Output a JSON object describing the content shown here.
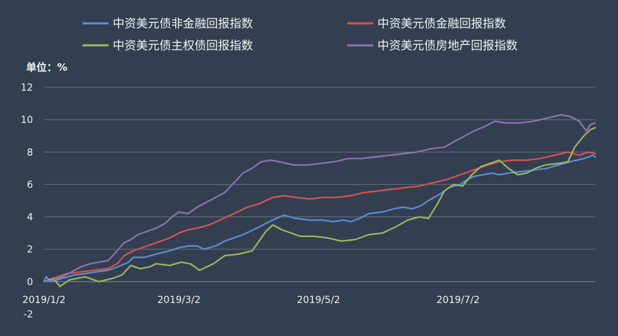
{
  "chart_data": {
    "type": "line",
    "title": "",
    "unit_label": "单位：%",
    "background": "#333f50",
    "grid_color": "#6b7380",
    "grid": true,
    "legend_position": "top",
    "ylim": [
      -2,
      12
    ],
    "y_ticks": [
      "-2",
      "0",
      "2",
      "4",
      "6",
      "8",
      "10",
      "12"
    ],
    "x_tick_labels": [
      "2019/1/2",
      "2019/3/2",
      "2019/5/2",
      "2019/7/2"
    ],
    "x_tick_dates": [
      "2019-01-02",
      "2019-03-02",
      "2019-05-02",
      "2019-07-02"
    ],
    "x_range": [
      "2019-01-02",
      "2019-08-31"
    ],
    "series": [
      {
        "name": "中资美元债非金融回报指数",
        "color": "#5b8fd6",
        "points": [
          [
            "2019-01-02",
            0.0
          ],
          [
            "2019-01-03",
            0.3
          ],
          [
            "2019-01-05",
            0.0
          ],
          [
            "2019-01-10",
            0.2
          ],
          [
            "2019-01-15",
            0.4
          ],
          [
            "2019-01-20",
            0.5
          ],
          [
            "2019-01-25",
            0.6
          ],
          [
            "2019-01-30",
            0.7
          ],
          [
            "2019-02-03",
            0.9
          ],
          [
            "2019-02-08",
            1.2
          ],
          [
            "2019-02-10",
            1.5
          ],
          [
            "2019-02-15",
            1.5
          ],
          [
            "2019-02-20",
            1.7
          ],
          [
            "2019-02-26",
            1.9
          ],
          [
            "2019-03-02",
            2.1
          ],
          [
            "2019-03-06",
            2.2
          ],
          [
            "2019-03-10",
            2.2
          ],
          [
            "2019-03-13",
            2.0
          ],
          [
            "2019-03-18",
            2.2
          ],
          [
            "2019-03-22",
            2.5
          ],
          [
            "2019-03-26",
            2.7
          ],
          [
            "2019-03-30",
            2.9
          ],
          [
            "2019-04-05",
            3.3
          ],
          [
            "2019-04-09",
            3.6
          ],
          [
            "2019-04-15",
            4.0
          ],
          [
            "2019-04-17",
            4.1
          ],
          [
            "2019-04-22",
            3.9
          ],
          [
            "2019-04-28",
            3.8
          ],
          [
            "2019-05-04",
            3.8
          ],
          [
            "2019-05-08",
            3.7
          ],
          [
            "2019-05-13",
            3.8
          ],
          [
            "2019-05-16",
            3.7
          ],
          [
            "2019-05-20",
            3.9
          ],
          [
            "2019-05-24",
            4.2
          ],
          [
            "2019-05-30",
            4.3
          ],
          [
            "2019-06-04",
            4.5
          ],
          [
            "2019-06-08",
            4.6
          ],
          [
            "2019-06-12",
            4.5
          ],
          [
            "2019-06-16",
            4.7
          ],
          [
            "2019-06-19",
            5.0
          ],
          [
            "2019-06-24",
            5.4
          ],
          [
            "2019-06-28",
            5.8
          ],
          [
            "2019-07-03",
            6.0
          ],
          [
            "2019-07-06",
            6.3
          ],
          [
            "2019-07-09",
            6.5
          ],
          [
            "2019-07-13",
            6.6
          ],
          [
            "2019-07-17",
            6.7
          ],
          [
            "2019-07-20",
            6.6
          ],
          [
            "2019-07-24",
            6.7
          ],
          [
            "2019-07-30",
            6.8
          ],
          [
            "2019-08-05",
            6.9
          ],
          [
            "2019-08-10",
            7.0
          ],
          [
            "2019-08-15",
            7.2
          ],
          [
            "2019-08-20",
            7.4
          ],
          [
            "2019-08-26",
            7.6
          ],
          [
            "2019-08-30",
            7.8
          ],
          [
            "2019-08-31",
            7.7
          ]
        ]
      },
      {
        "name": "中资美元债金融回报指数",
        "color": "#d9534f",
        "points": [
          [
            "2019-01-02",
            0.0
          ],
          [
            "2019-01-06",
            0.2
          ],
          [
            "2019-01-12",
            0.5
          ],
          [
            "2019-01-18",
            0.6
          ],
          [
            "2019-01-24",
            0.7
          ],
          [
            "2019-01-30",
            0.8
          ],
          [
            "2019-02-03",
            1.1
          ],
          [
            "2019-02-06",
            1.6
          ],
          [
            "2019-02-10",
            1.9
          ],
          [
            "2019-02-14",
            2.1
          ],
          [
            "2019-02-20",
            2.4
          ],
          [
            "2019-02-26",
            2.7
          ],
          [
            "2019-03-02",
            3.0
          ],
          [
            "2019-03-06",
            3.2
          ],
          [
            "2019-03-10",
            3.3
          ],
          [
            "2019-03-15",
            3.5
          ],
          [
            "2019-03-20",
            3.8
          ],
          [
            "2019-03-26",
            4.2
          ],
          [
            "2019-04-01",
            4.6
          ],
          [
            "2019-04-06",
            4.8
          ],
          [
            "2019-04-12",
            5.2
          ],
          [
            "2019-04-17",
            5.3
          ],
          [
            "2019-04-22",
            5.2
          ],
          [
            "2019-04-28",
            5.1
          ],
          [
            "2019-05-04",
            5.2
          ],
          [
            "2019-05-10",
            5.2
          ],
          [
            "2019-05-16",
            5.3
          ],
          [
            "2019-05-22",
            5.5
          ],
          [
            "2019-05-28",
            5.6
          ],
          [
            "2019-06-03",
            5.7
          ],
          [
            "2019-06-09",
            5.8
          ],
          [
            "2019-06-15",
            5.9
          ],
          [
            "2019-06-21",
            6.1
          ],
          [
            "2019-06-27",
            6.3
          ],
          [
            "2019-07-03",
            6.6
          ],
          [
            "2019-07-09",
            6.9
          ],
          [
            "2019-07-15",
            7.2
          ],
          [
            "2019-07-20",
            7.4
          ],
          [
            "2019-07-26",
            7.5
          ],
          [
            "2019-08-01",
            7.5
          ],
          [
            "2019-08-07",
            7.6
          ],
          [
            "2019-08-13",
            7.8
          ],
          [
            "2019-08-19",
            8.0
          ],
          [
            "2019-08-24",
            7.8
          ],
          [
            "2019-08-28",
            8.0
          ],
          [
            "2019-08-31",
            7.9
          ]
        ]
      },
      {
        "name": "中资美元债主权债回报指数",
        "color": "#9bbb59",
        "points": [
          [
            "2019-01-02",
            0.0
          ],
          [
            "2019-01-06",
            0.2
          ],
          [
            "2019-01-09",
            -0.3
          ],
          [
            "2019-01-13",
            0.1
          ],
          [
            "2019-01-20",
            0.3
          ],
          [
            "2019-01-26",
            0.0
          ],
          [
            "2019-02-01",
            0.2
          ],
          [
            "2019-02-05",
            0.4
          ],
          [
            "2019-02-09",
            1.0
          ],
          [
            "2019-02-13",
            0.8
          ],
          [
            "2019-02-17",
            0.9
          ],
          [
            "2019-02-20",
            1.1
          ],
          [
            "2019-02-26",
            1.0
          ],
          [
            "2019-03-03",
            1.2
          ],
          [
            "2019-03-07",
            1.1
          ],
          [
            "2019-03-11",
            0.7
          ],
          [
            "2019-03-17",
            1.1
          ],
          [
            "2019-03-22",
            1.6
          ],
          [
            "2019-03-28",
            1.7
          ],
          [
            "2019-04-03",
            1.9
          ],
          [
            "2019-04-06",
            2.5
          ],
          [
            "2019-04-09",
            3.1
          ],
          [
            "2019-04-12",
            3.5
          ],
          [
            "2019-04-16",
            3.2
          ],
          [
            "2019-04-20",
            3.0
          ],
          [
            "2019-04-24",
            2.8
          ],
          [
            "2019-04-30",
            2.8
          ],
          [
            "2019-05-06",
            2.7
          ],
          [
            "2019-05-12",
            2.5
          ],
          [
            "2019-05-18",
            2.6
          ],
          [
            "2019-05-24",
            2.9
          ],
          [
            "2019-05-30",
            3.0
          ],
          [
            "2019-06-05",
            3.4
          ],
          [
            "2019-06-10",
            3.8
          ],
          [
            "2019-06-15",
            4.0
          ],
          [
            "2019-06-19",
            3.9
          ],
          [
            "2019-06-23",
            4.8
          ],
          [
            "2019-06-26",
            5.6
          ],
          [
            "2019-06-30",
            6.0
          ],
          [
            "2019-07-04",
            5.9
          ],
          [
            "2019-07-08",
            6.6
          ],
          [
            "2019-07-12",
            7.1
          ],
          [
            "2019-07-16",
            7.3
          ],
          [
            "2019-07-20",
            7.5
          ],
          [
            "2019-07-24",
            7.0
          ],
          [
            "2019-07-28",
            6.6
          ],
          [
            "2019-08-01",
            6.7
          ],
          [
            "2019-08-05",
            7.0
          ],
          [
            "2019-08-09",
            7.2
          ],
          [
            "2019-08-15",
            7.3
          ],
          [
            "2019-08-19",
            7.4
          ],
          [
            "2019-08-22",
            8.3
          ],
          [
            "2019-08-26",
            9.0
          ],
          [
            "2019-08-29",
            9.4
          ],
          [
            "2019-08-31",
            9.5
          ]
        ]
      },
      {
        "name": "中资美元债房地产回报指数",
        "color": "#8f72b8",
        "points": [
          [
            "2019-01-02",
            0.0
          ],
          [
            "2019-01-06",
            0.1
          ],
          [
            "2019-01-10",
            0.3
          ],
          [
            "2019-01-14",
            0.6
          ],
          [
            "2019-01-18",
            0.9
          ],
          [
            "2019-01-22",
            1.1
          ],
          [
            "2019-01-26",
            1.2
          ],
          [
            "2019-01-30",
            1.3
          ],
          [
            "2019-02-03",
            1.9
          ],
          [
            "2019-02-06",
            2.4
          ],
          [
            "2019-02-09",
            2.6
          ],
          [
            "2019-02-12",
            2.9
          ],
          [
            "2019-02-16",
            3.1
          ],
          [
            "2019-02-20",
            3.3
          ],
          [
            "2019-02-24",
            3.6
          ],
          [
            "2019-02-27",
            4.0
          ],
          [
            "2019-03-02",
            4.3
          ],
          [
            "2019-03-06",
            4.2
          ],
          [
            "2019-03-10",
            4.6
          ],
          [
            "2019-03-14",
            4.9
          ],
          [
            "2019-03-18",
            5.2
          ],
          [
            "2019-03-22",
            5.5
          ],
          [
            "2019-03-26",
            6.1
          ],
          [
            "2019-03-30",
            6.7
          ],
          [
            "2019-04-03",
            7.0
          ],
          [
            "2019-04-07",
            7.4
          ],
          [
            "2019-04-11",
            7.5
          ],
          [
            "2019-04-15",
            7.4
          ],
          [
            "2019-04-21",
            7.2
          ],
          [
            "2019-04-27",
            7.2
          ],
          [
            "2019-05-03",
            7.3
          ],
          [
            "2019-05-09",
            7.4
          ],
          [
            "2019-05-15",
            7.6
          ],
          [
            "2019-05-21",
            7.6
          ],
          [
            "2019-05-27",
            7.7
          ],
          [
            "2019-06-02",
            7.8
          ],
          [
            "2019-06-08",
            7.9
          ],
          [
            "2019-06-14",
            8.0
          ],
          [
            "2019-06-20",
            8.2
          ],
          [
            "2019-06-26",
            8.3
          ],
          [
            "2019-07-01",
            8.7
          ],
          [
            "2019-07-05",
            9.0
          ],
          [
            "2019-07-09",
            9.3
          ],
          [
            "2019-07-14",
            9.6
          ],
          [
            "2019-07-18",
            9.9
          ],
          [
            "2019-07-23",
            9.8
          ],
          [
            "2019-07-29",
            9.8
          ],
          [
            "2019-08-04",
            9.9
          ],
          [
            "2019-08-10",
            10.1
          ],
          [
            "2019-08-16",
            10.3
          ],
          [
            "2019-08-20",
            10.2
          ],
          [
            "2019-08-24",
            9.9
          ],
          [
            "2019-08-27",
            9.3
          ],
          [
            "2019-08-29",
            9.7
          ],
          [
            "2019-08-31",
            9.8
          ]
        ]
      }
    ]
  }
}
